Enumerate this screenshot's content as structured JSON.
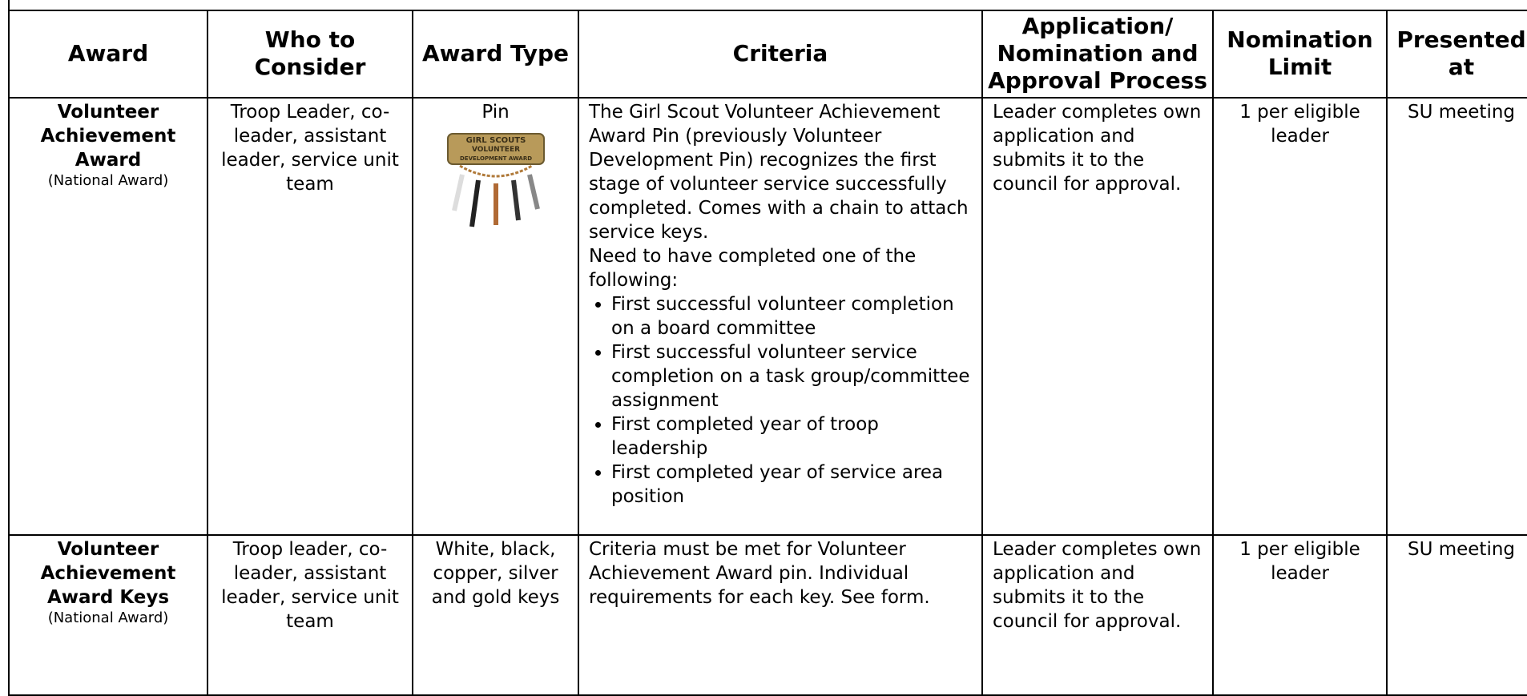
{
  "table": {
    "header": [
      "Award",
      "Who to Consider",
      "Award Type",
      "Criteria",
      "Application/ Nomination and Approval Process",
      "Nomination Limit",
      "Presented at"
    ],
    "rows": [
      {
        "award": "Volunteer Achievement Award",
        "award_note": "(National Award)",
        "who": "Troop Leader, co-leader, assistant leader, service unit team",
        "type": "Pin",
        "pin_text": [
          "GIRL SCOUTS",
          "VOLUNTEER",
          "DEVELOPMENT AWARD"
        ],
        "criteria": {
          "text": "The Girl Scout Volunteer Achievement Award Pin (previously Volunteer Development Pin) recognizes the first stage of volunteer service successfully completed. Comes with a chain to attach service keys.",
          "need": "Need to have completed one of the following:",
          "bullets": [
            "First successful volunteer completion on a board committee",
            "First successful volunteer service completion on a task group/committee assignment",
            "First completed year of troop leadership",
            "First completed year of service area position"
          ]
        },
        "process": "Leader completes own application and submits it to the council for approval.",
        "limit": "1 per eligible leader",
        "presented": "SU meeting"
      },
      {
        "award": "Volunteer Achievement Award Keys",
        "award_note": "(National Award)",
        "who": "Troop leader, co-leader, assistant leader, service unit team",
        "type": "White, black, copper, silver and gold keys",
        "criteria": {
          "text": "Criteria must be met for Volunteer Achievement Award pin.  Individual requirements for each key.  See form."
        },
        "process": "Leader completes own application and submits it to the council for approval.",
        "limit": "1 per eligible leader",
        "presented": "SU meeting"
      }
    ]
  }
}
